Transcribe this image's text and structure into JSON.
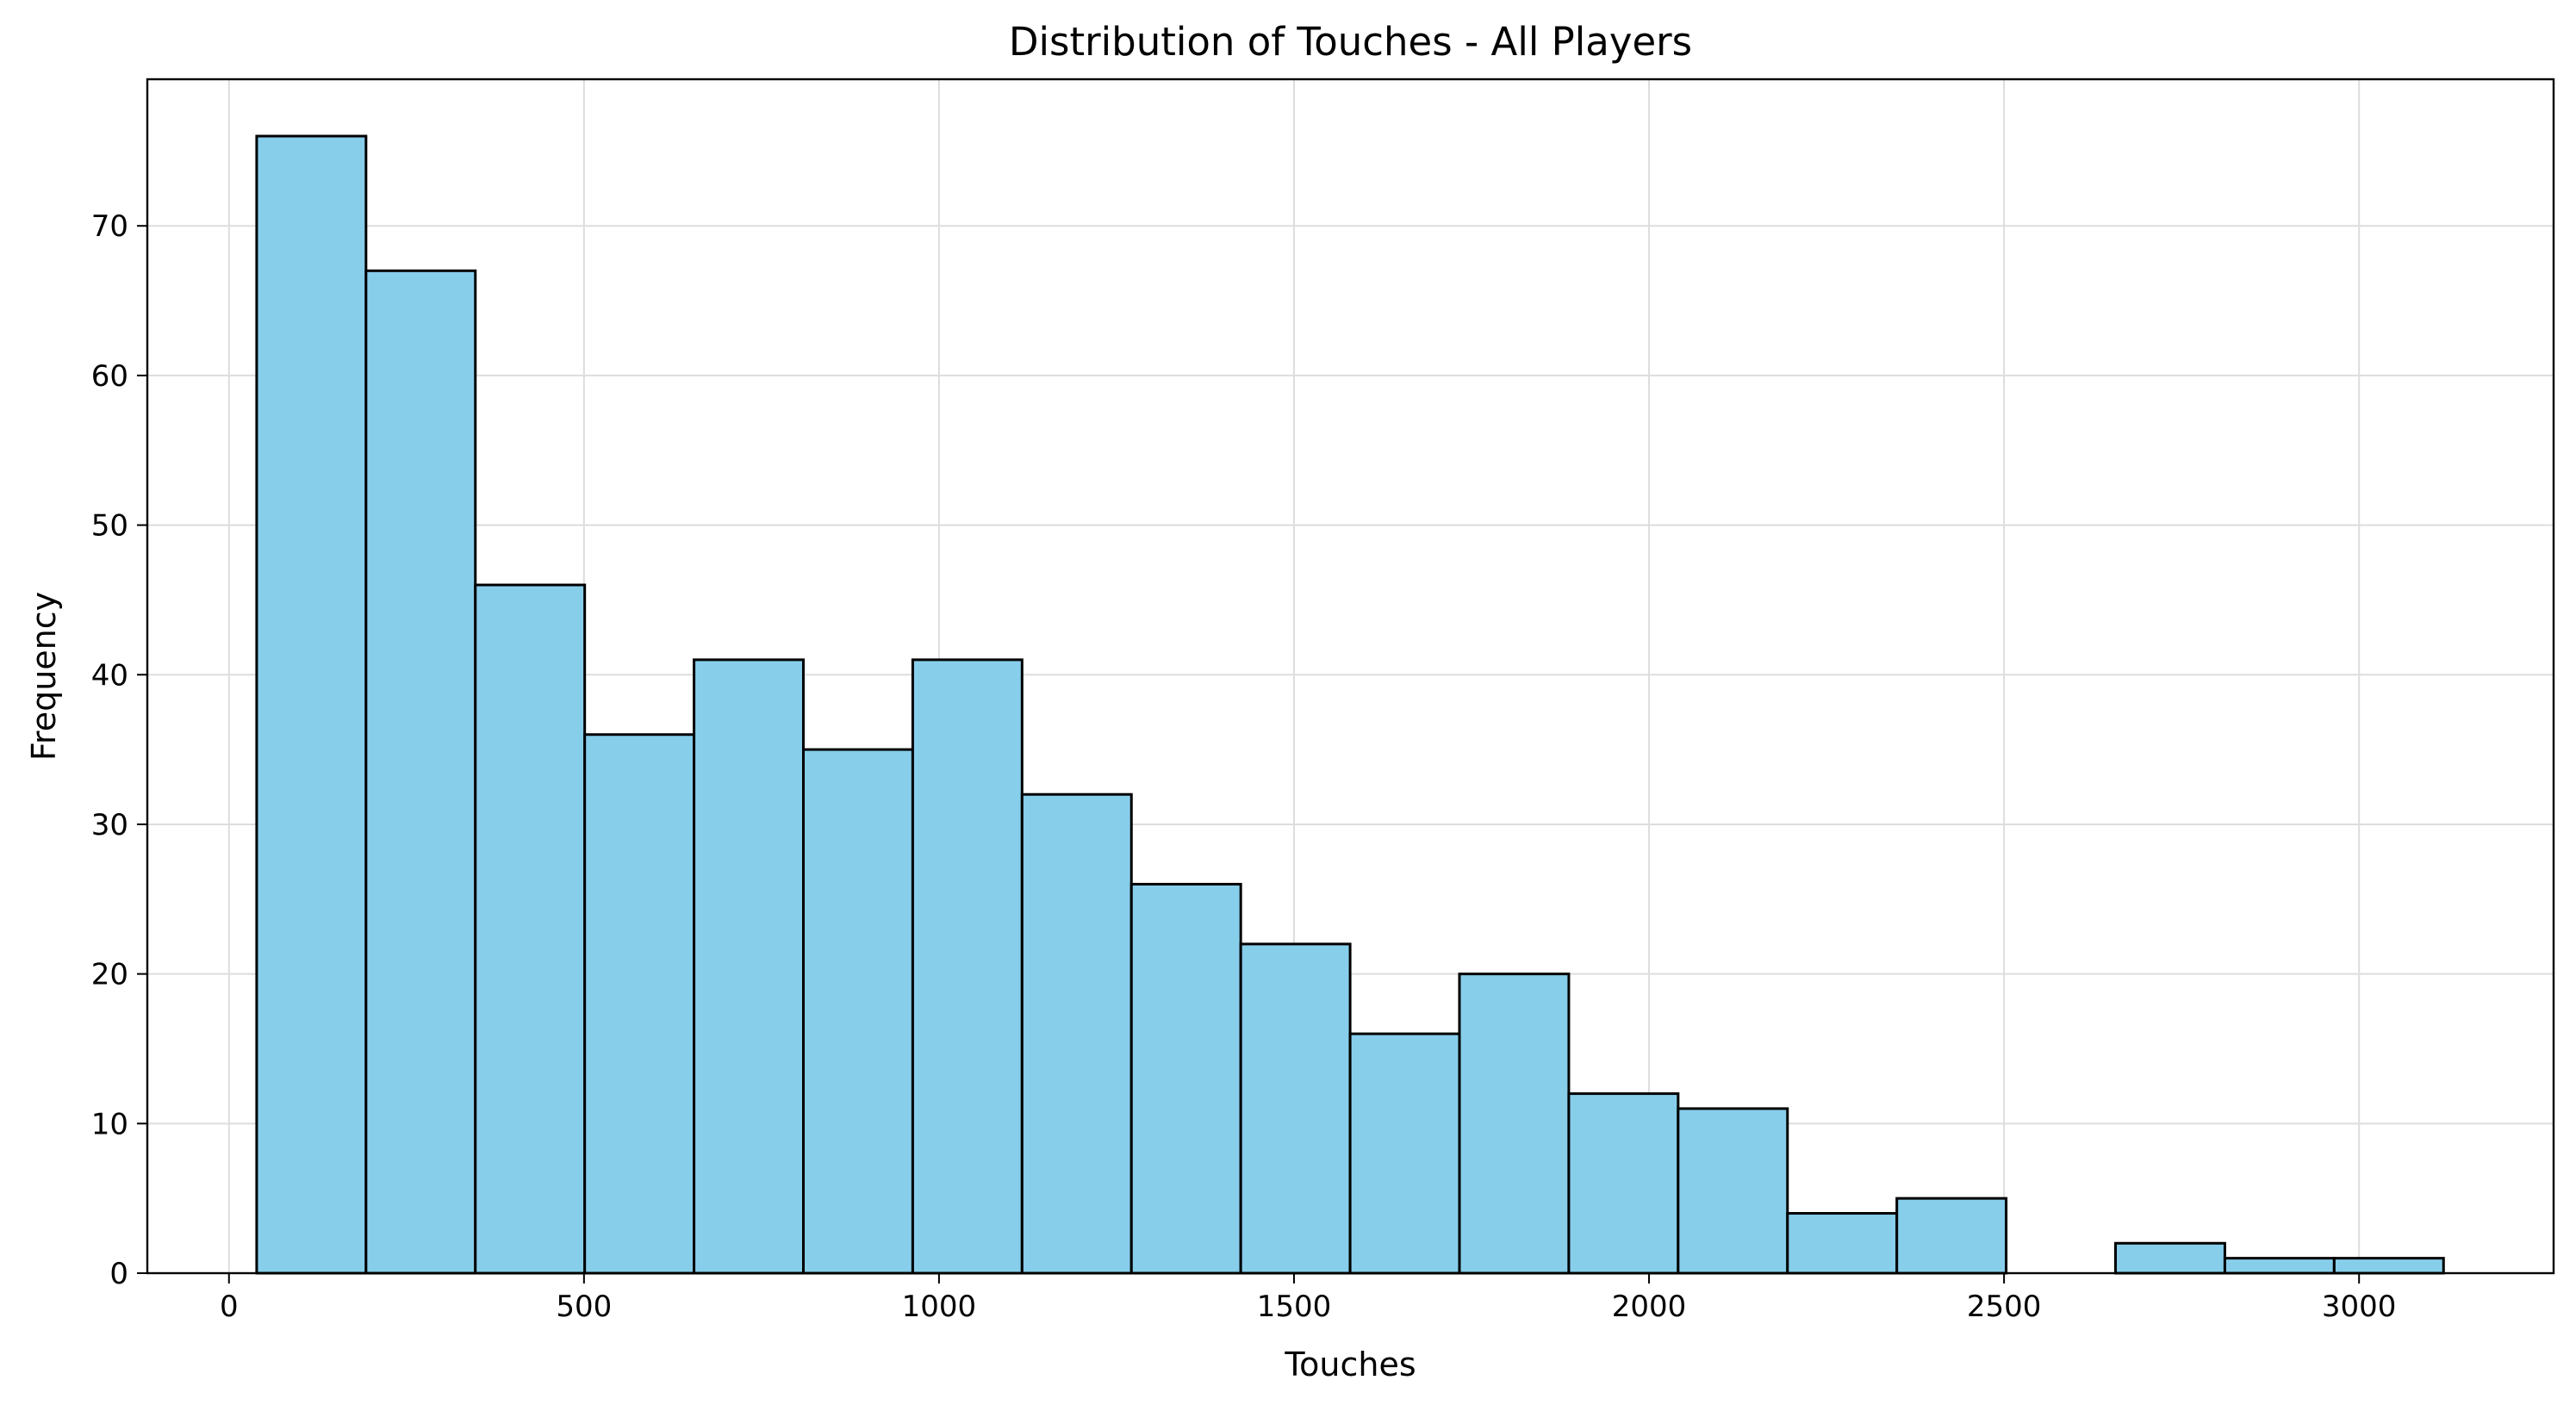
{
  "chart_data": {
    "type": "bar",
    "title": "Distribution of Touches - All Players",
    "xlabel": "Touches",
    "ylabel": "Frequency",
    "bin_edges": [
      39,
      193,
      347,
      501,
      655,
      809,
      963,
      1117,
      1271,
      1425,
      1579,
      1733,
      1887,
      2041,
      2195,
      2349,
      2503,
      2657,
      2811,
      2965,
      3119
    ],
    "values": [
      76,
      67,
      46,
      36,
      41,
      35,
      41,
      32,
      26,
      22,
      16,
      20,
      12,
      11,
      4,
      5,
      0,
      2,
      1,
      1
    ],
    "xlim": [
      -115,
      3274
    ],
    "ylim": [
      0,
      79.8
    ],
    "x_ticks": [
      0,
      500,
      1000,
      1500,
      2000,
      2500,
      3000
    ],
    "x_tick_labels": [
      "0",
      "500",
      "1000",
      "1500",
      "2000",
      "2500",
      "3000"
    ],
    "y_ticks": [
      0,
      10,
      20,
      30,
      40,
      50,
      60,
      70
    ],
    "y_tick_labels": [
      "0",
      "10",
      "20",
      "30",
      "40",
      "50",
      "60",
      "70"
    ],
    "grid": true,
    "bar_color": "#87CEEB",
    "edge_color": "#000000",
    "grid_color": "#dddddd"
  }
}
